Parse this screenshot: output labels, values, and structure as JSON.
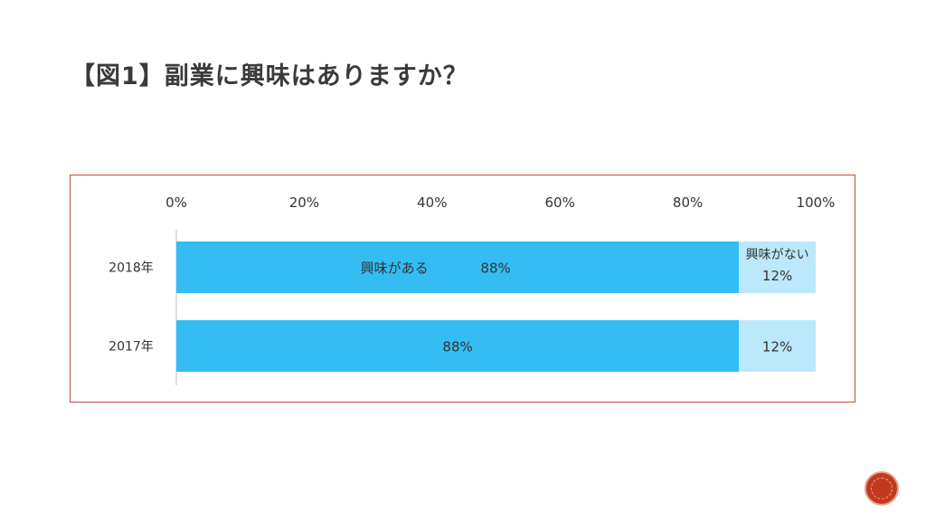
{
  "slide": {
    "title": "【図1】副業に興味はありますか？"
  },
  "colors": {
    "interested": "#33bdf2",
    "not_interested": "#bce8fb",
    "frame": "#c0543a",
    "badge": "#c23a1e"
  },
  "chart_data": {
    "type": "bar",
    "orientation": "horizontal",
    "stacked": true,
    "xlim": [
      0,
      100
    ],
    "x_ticks": [
      "0%",
      "20%",
      "40%",
      "60%",
      "80%",
      "100%"
    ],
    "categories": [
      "2018年",
      "2017年"
    ],
    "series": [
      {
        "name": "興味がある",
        "values": [
          88,
          88
        ],
        "labels": [
          "88%",
          "88%"
        ]
      },
      {
        "name": "興味がない",
        "values": [
          12,
          12
        ],
        "labels": [
          "12%",
          "12%"
        ]
      }
    ]
  }
}
